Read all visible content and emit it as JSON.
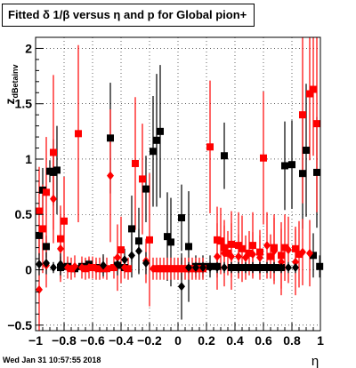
{
  "chart_data": {
    "type": "scatter",
    "title": "Fitted δ 1/β versus η and p for Global pion+",
    "xlabel": "η",
    "ylabel": "z",
    "ylabel_sub": "dBetainv",
    "xlim": [
      -1,
      1
    ],
    "ylim": [
      -0.55,
      2.1
    ],
    "xticks": [
      -1,
      -0.8,
      -0.6,
      -0.4,
      -0.2,
      0,
      0.2,
      0.4,
      0.6,
      0.8,
      1
    ],
    "xtick_labels": [
      "−1",
      "−0.8",
      "−0.6",
      "−0.4",
      "−0.2",
      "0",
      "0.2",
      "0.4",
      "0.6",
      "0.8",
      "1"
    ],
    "yticks": [
      -0.5,
      0,
      0.5,
      1,
      1.5,
      2
    ],
    "ytick_labels": [
      "−0.5",
      "0",
      "0.5",
      "1",
      "1.5",
      "2"
    ],
    "grid": true,
    "series": [
      {
        "color": "#000000",
        "marker": "square",
        "points": [
          [
            -0.975,
            0.31,
            0.1
          ],
          [
            -0.95,
            0.72,
            0.2
          ],
          [
            -0.925,
            0.21,
            0.1
          ],
          [
            -0.9,
            0.89,
            0.1
          ],
          [
            -0.875,
            0.88,
            0.3
          ],
          [
            -0.85,
            0.9,
            0.4
          ],
          [
            -0.825,
            0.02,
            0.1
          ],
          [
            -0.775,
            0.03,
            0.05
          ],
          [
            -0.725,
            0.01,
            0.05
          ],
          [
            -0.675,
            0.03,
            0.05
          ],
          [
            -0.625,
            0.05,
            0.05
          ],
          [
            -0.575,
            0.02,
            0.05
          ],
          [
            -0.525,
            0.01,
            0.05
          ],
          [
            -0.475,
            1.19,
            0.5
          ],
          [
            -0.425,
            0.04,
            0.05
          ],
          [
            -0.375,
            0.02,
            0.05
          ],
          [
            -0.325,
            0.37,
            0.3
          ],
          [
            -0.275,
            0.26,
            0.3
          ],
          [
            -0.225,
            0.73,
            0.3
          ],
          [
            -0.175,
            1.07,
            0.5
          ],
          [
            -0.15,
            1.17,
            0.6
          ],
          [
            -0.125,
            1.25,
            0.6
          ],
          [
            -0.075,
            0.3,
            0.4
          ],
          [
            -0.05,
            0.25,
            0.4
          ],
          [
            0.025,
            0.47,
            0.3
          ],
          [
            0.075,
            0.21,
            0.5
          ],
          [
            0.125,
            0.03,
            0.1
          ],
          [
            0.175,
            0.03,
            0.1
          ],
          [
            0.225,
            0.03,
            0.1
          ],
          [
            0.275,
            0.03,
            0.1
          ],
          [
            0.325,
            1.03,
            0.3
          ],
          [
            0.375,
            0.02,
            0.05
          ],
          [
            0.425,
            0.02,
            0.05
          ],
          [
            0.475,
            0.02,
            0.05
          ],
          [
            0.525,
            0.02,
            0.05
          ],
          [
            0.575,
            0.02,
            0.05
          ],
          [
            0.625,
            0.02,
            0.05
          ],
          [
            0.675,
            0.02,
            0.05
          ],
          [
            0.725,
            0.02,
            0.05
          ],
          [
            0.75,
            0.94,
            0.4
          ],
          [
            0.8,
            0.95,
            0.4
          ],
          [
            0.875,
            0.87,
            0.5
          ],
          [
            0.9,
            1.08,
            0.6
          ],
          [
            0.95,
            0.13,
            0.2
          ],
          [
            0.975,
            0.88,
            0.5
          ],
          [
            0.995,
            0.03,
            0.1
          ]
        ]
      },
      {
        "color": "#ff0000",
        "marker": "square",
        "points": [
          [
            -0.975,
            0.53,
            0.4
          ],
          [
            -0.95,
            0.37,
            0.4
          ],
          [
            -0.925,
            0.7,
            0.5
          ],
          [
            -0.875,
            1.06,
            0.7
          ],
          [
            -0.825,
            0.28,
            0.3
          ],
          [
            -0.8,
            0.44,
            0.4
          ],
          [
            -0.75,
            0.01,
            0.1
          ],
          [
            -0.7,
            1.23,
            0.8
          ],
          [
            -0.65,
            0.01,
            0.1
          ],
          [
            -0.6,
            0.02,
            0.1
          ],
          [
            -0.55,
            0.01,
            0.1
          ],
          [
            -0.5,
            0.01,
            0.1
          ],
          [
            -0.45,
            0.02,
            0.1
          ],
          [
            -0.4,
            0.18,
            0.3
          ],
          [
            -0.35,
            0.01,
            0.1
          ],
          [
            -0.3,
            0.96,
            0.6
          ],
          [
            -0.25,
            0.82,
            0.5
          ],
          [
            -0.2,
            0.27,
            0.6
          ],
          [
            -0.15,
            0.01,
            0.1
          ],
          [
            -0.125,
            0.01,
            0.1
          ],
          [
            -0.1,
            0.01,
            0.1
          ],
          [
            -0.075,
            0.01,
            0.1
          ],
          [
            -0.05,
            0.01,
            0.1
          ],
          [
            -0.025,
            0.01,
            0.1
          ],
          [
            0,
            0.01,
            0.1
          ],
          [
            0.025,
            0.01,
            0.1
          ],
          [
            0.05,
            0.01,
            0.1
          ],
          [
            0.075,
            0.01,
            0.1
          ],
          [
            0.1,
            0.01,
            0.1
          ],
          [
            0.125,
            0.01,
            0.1
          ],
          [
            0.15,
            0.01,
            0.1
          ],
          [
            0.175,
            0.01,
            0.1
          ],
          [
            0.225,
            1.11,
            0.6
          ],
          [
            0.275,
            0.27,
            0.3
          ],
          [
            0.3,
            0.26,
            0.3
          ],
          [
            0.325,
            0.2,
            0.2
          ],
          [
            0.35,
            0.15,
            0.2
          ],
          [
            0.375,
            0.23,
            0.3
          ],
          [
            0.425,
            0.22,
            0.3
          ],
          [
            0.45,
            0.19,
            0.3
          ],
          [
            0.5,
            0.15,
            0.2
          ],
          [
            0.525,
            0.22,
            0.3
          ],
          [
            0.575,
            0.16,
            0.2
          ],
          [
            0.6,
            1.01,
            0.6
          ],
          [
            0.65,
            0.12,
            0.2
          ],
          [
            0.675,
            0.2,
            0.3
          ],
          [
            0.725,
            0.13,
            0.3
          ],
          [
            0.75,
            0.2,
            0.3
          ],
          [
            0.825,
            0.19,
            0.2
          ],
          [
            0.85,
            0.14,
            0.3
          ],
          [
            0.875,
            1.4,
            0.8
          ],
          [
            0.925,
            1.59,
            0.6
          ],
          [
            0.95,
            1.63,
            0.6
          ],
          [
            0.975,
            1.32,
            0.8
          ]
        ]
      },
      {
        "color": "#ff0000",
        "marker": "diamond",
        "points": [
          [
            -0.975,
            -0.18,
            0.4
          ],
          [
            -0.925,
            0.04,
            0.2
          ],
          [
            -0.875,
            0.64,
            0.4
          ],
          [
            -0.825,
            0.19,
            0.3
          ],
          [
            -0.775,
            0.02,
            0.1
          ],
          [
            -0.725,
            0.03,
            0.1
          ],
          [
            -0.675,
            0.02,
            0.1
          ],
          [
            -0.625,
            0.02,
            0.1
          ],
          [
            -0.575,
            0.01,
            0.1
          ],
          [
            -0.525,
            0.02,
            0.1
          ],
          [
            -0.475,
            0.85,
            0.6
          ],
          [
            -0.425,
            0.11,
            0.3
          ],
          [
            -0.375,
            0.02,
            0.1
          ],
          [
            -0.225,
            0.08,
            0.2
          ],
          [
            -0.175,
            0.01,
            0.1
          ],
          [
            0.025,
            0.01,
            0.1
          ],
          [
            0.275,
            0.12,
            0.3
          ],
          [
            0.325,
            0.15,
            0.3
          ],
          [
            0.375,
            0.12,
            0.3
          ],
          [
            0.425,
            0.12,
            0.2
          ],
          [
            0.475,
            0.11,
            0.2
          ],
          [
            0.525,
            0.14,
            0.2
          ],
          [
            0.575,
            0.11,
            0.2
          ],
          [
            0.625,
            0.22,
            0.3
          ],
          [
            0.675,
            0.17,
            0.3
          ],
          [
            0.725,
            0.07,
            0.3
          ],
          [
            0.775,
            0.18,
            0.3
          ],
          [
            0.825,
            0.07,
            0.3
          ],
          [
            0.875,
            0.16,
            0.3
          ],
          [
            0.925,
            0.15,
            0.3
          ]
        ]
      },
      {
        "color": "#000000",
        "marker": "diamond",
        "points": [
          [
            -0.975,
            0.05,
            0.1
          ],
          [
            -0.925,
            0.06,
            0.1
          ],
          [
            -0.875,
            0.02,
            0.05
          ],
          [
            -0.825,
            0.05,
            0.1
          ],
          [
            -0.525,
            0.04,
            0.1
          ],
          [
            -0.425,
            0.05,
            0.1
          ],
          [
            -0.375,
            0.09,
            0.1
          ],
          [
            -0.325,
            0.13,
            0.2
          ],
          [
            -0.275,
            0.17,
            0.2
          ],
          [
            -0.225,
            0.06,
            0.1
          ],
          [
            0.025,
            -0.15,
            0.3
          ],
          [
            0.075,
            0.02,
            0.05
          ],
          [
            0.125,
            0.02,
            0.05
          ],
          [
            0.175,
            0.02,
            0.05
          ],
          [
            0.225,
            0.02,
            0.05
          ],
          [
            0.275,
            0.02,
            0.05
          ],
          [
            0.325,
            0.02,
            0.05
          ],
          [
            0.375,
            0.02,
            0.05
          ],
          [
            0.425,
            0.02,
            0.05
          ],
          [
            0.475,
            0.02,
            0.05
          ],
          [
            0.525,
            0.02,
            0.05
          ],
          [
            0.575,
            0.02,
            0.05
          ],
          [
            0.625,
            0.02,
            0.05
          ],
          [
            0.675,
            0.02,
            0.05
          ],
          [
            0.725,
            0.02,
            0.05
          ],
          [
            0.775,
            0.02,
            0.05
          ],
          [
            0.825,
            0.02,
            0.05
          ]
        ]
      }
    ]
  },
  "footer": {
    "timestamp": "Wed Jan 31 10:57:55 2018"
  }
}
